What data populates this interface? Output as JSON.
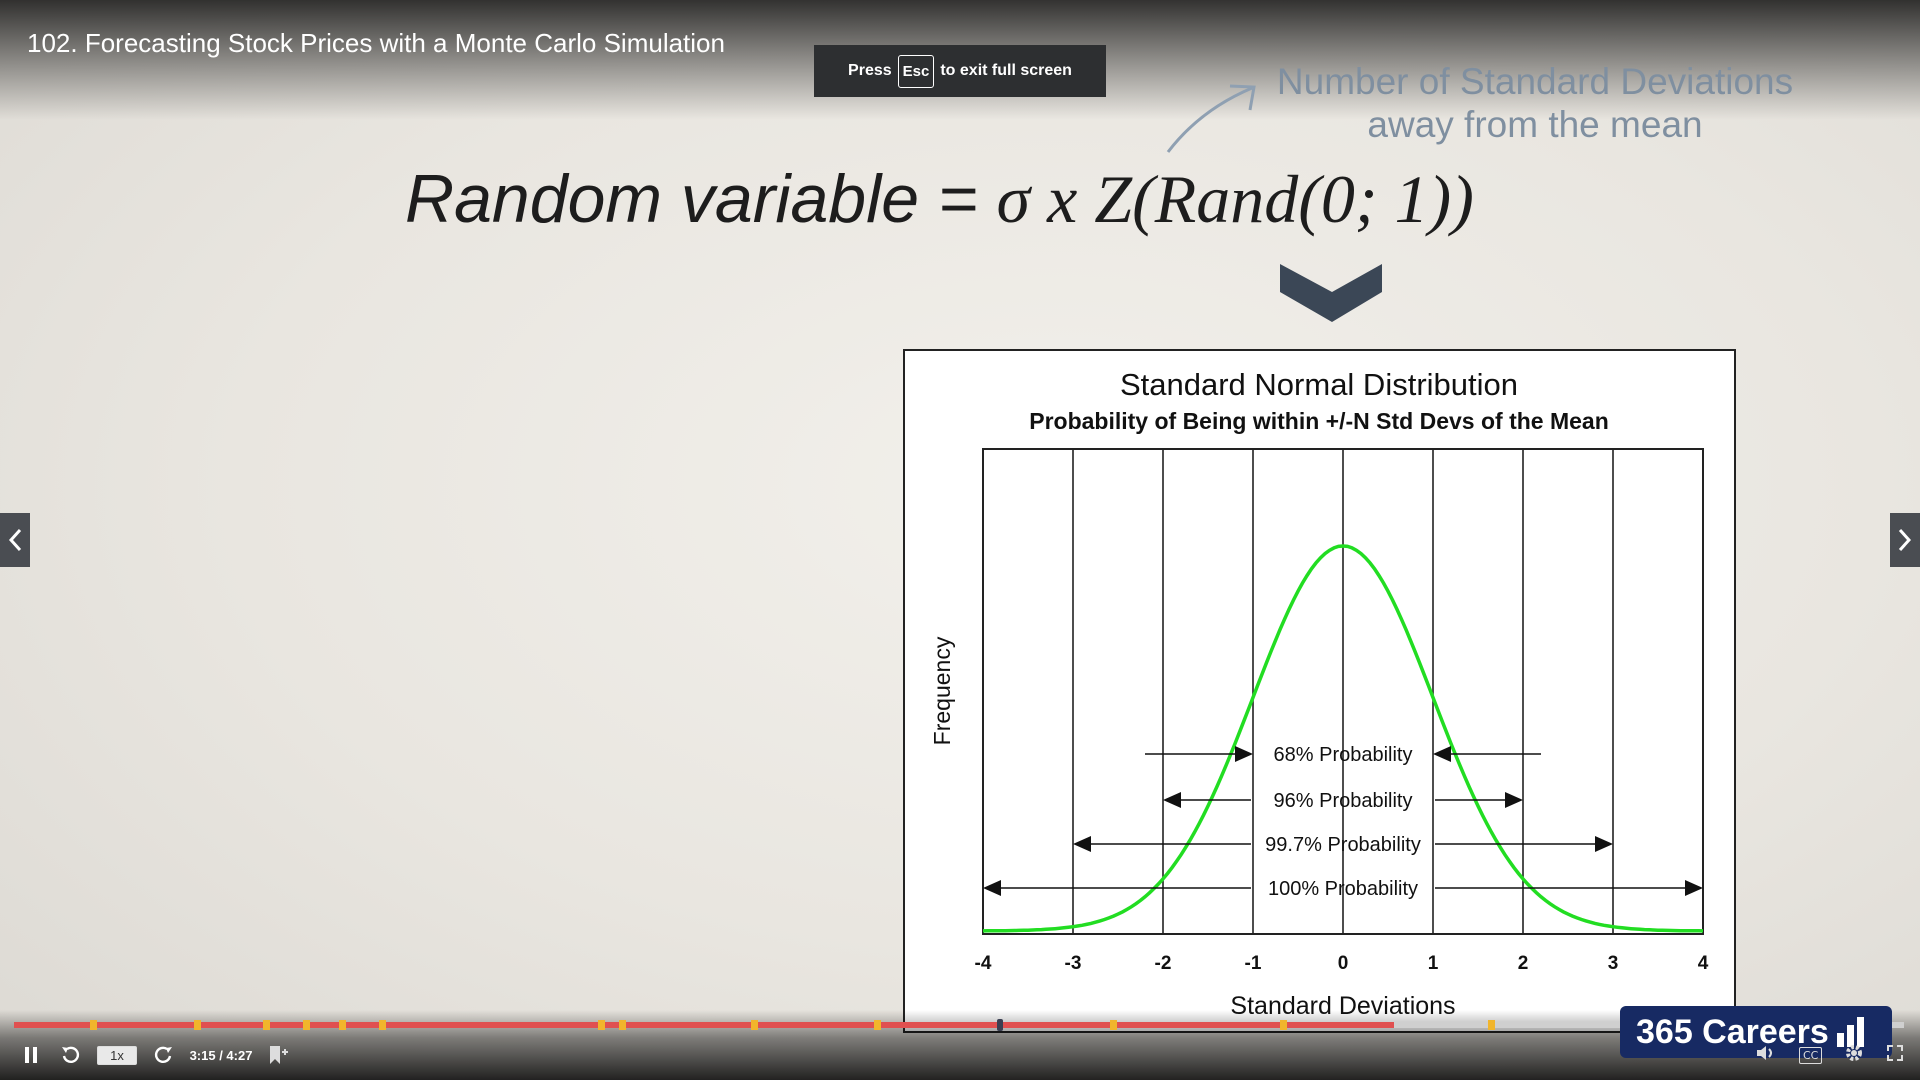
{
  "player": {
    "title": "102. Forecasting Stock Prices with a Monte Carlo Simulation",
    "esc_press": "Press",
    "esc_key": "Esc",
    "esc_suffix": "to exit full screen",
    "speed": "1x",
    "time": "3:15 / 4:27",
    "progress": 0.73,
    "chapter_markers": [
      0.04,
      0.095,
      0.132,
      0.153,
      0.172,
      0.193,
      0.309,
      0.32,
      0.39,
      0.455,
      0.58,
      0.67,
      0.78
    ],
    "scrub_position": 0.52,
    "brand": "365 Careers",
    "icons": {
      "prev": "chevron-left-icon",
      "next": "chevron-right-icon",
      "play_pause": "pause-icon",
      "rewind": "rewind-icon",
      "forward": "forward-icon",
      "bookmark": "bookmark-add-icon",
      "volume": "volume-icon",
      "captions": "captions-icon",
      "settings": "gear-icon",
      "fullscreen": "fullscreen-icon"
    },
    "captions_label": "CC",
    "accent_color": "#e05050",
    "marker_color": "#f1b52c"
  },
  "slide": {
    "annotation_line1": "Number of Standard Deviations",
    "annotation_line2": "away from the mean",
    "formula_lhs": "Random variable = ",
    "formula_rhs": "σ x Z(Rand(0; 1))"
  },
  "chart_data": {
    "type": "line",
    "title": "Standard Normal Distribution",
    "subtitle": "Probability of Being within +/-N Std Devs of the Mean",
    "xlabel": "Standard Deviations",
    "ylabel": "Frequency",
    "xlim": [
      -4,
      4
    ],
    "x_ticks": [
      "-4",
      "-3",
      "-2",
      "-1",
      "0",
      "1",
      "2",
      "3",
      "4"
    ],
    "grid": true,
    "series_color": "#22dd22",
    "curve": {
      "x": [
        -4,
        -3.5,
        -3,
        -2.5,
        -2,
        -1.5,
        -1,
        -0.5,
        0,
        0.5,
        1,
        1.5,
        2,
        2.5,
        3,
        3.5,
        4
      ],
      "y": [
        0.0001,
        0.0009,
        0.0044,
        0.0175,
        0.054,
        0.1295,
        0.242,
        0.3521,
        0.3989,
        0.3521,
        0.242,
        0.1295,
        0.054,
        0.0175,
        0.0044,
        0.0009,
        0.0001
      ]
    },
    "intervals": [
      {
        "label": "68% Probability",
        "n": 1
      },
      {
        "label": "96% Probability",
        "n": 2
      },
      {
        "label": "99.7% Probability",
        "n": 3
      },
      {
        "label": "100% Probability",
        "n": 4
      }
    ]
  }
}
